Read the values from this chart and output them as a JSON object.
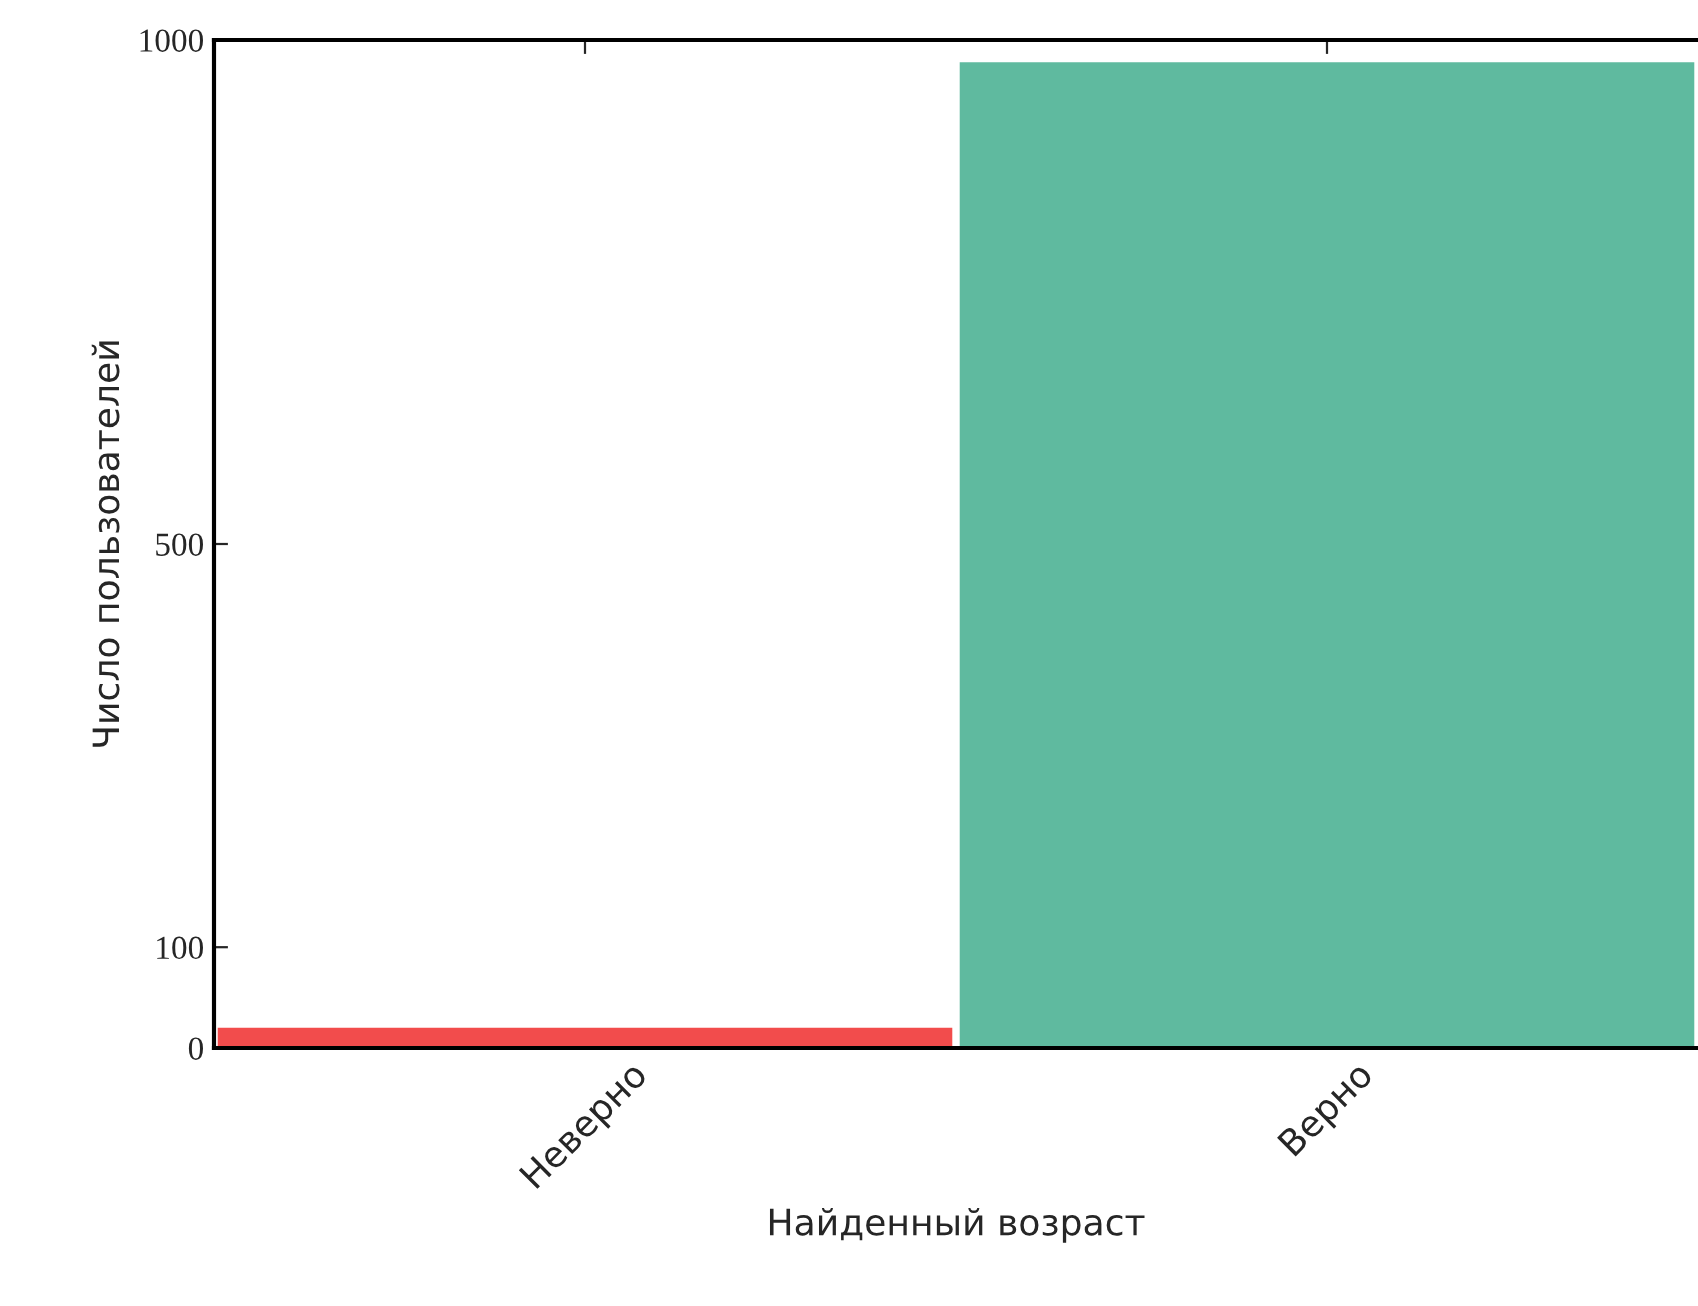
{
  "chart_data": {
    "type": "bar",
    "xlabel": "Найденный возраст",
    "ylabel": "Число пользователей",
    "categories": [
      "Неверно",
      "Верно"
    ],
    "values": [
      20,
      978
    ],
    "colors": [
      "#f24c4c",
      "#5fba9f"
    ],
    "ylim": [
      0,
      1000
    ],
    "yticks": [
      0,
      100,
      500,
      1000
    ],
    "grid": false
  }
}
